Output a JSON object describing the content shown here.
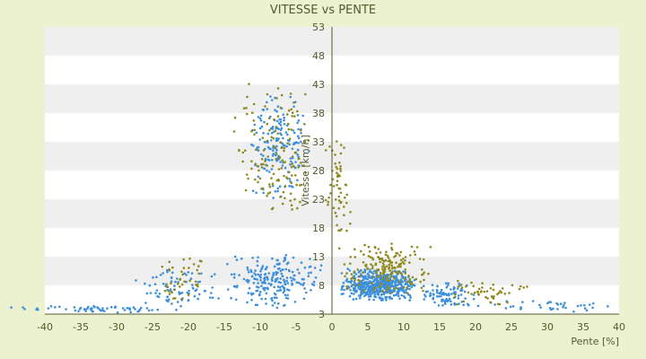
{
  "chart_data": {
    "type": "scatter",
    "title": "VITESSE vs PENTE",
    "xlabel": "Pente [%]",
    "ylabel": "Vitesse [km/h]",
    "xlim": [
      -40,
      40
    ],
    "ylim": [
      3,
      53
    ],
    "x_ticks": [
      -40,
      -35,
      -30,
      -25,
      -20,
      -15,
      -10,
      -5,
      0,
      5,
      10,
      15,
      20,
      25,
      30,
      35,
      40
    ],
    "y_ticks": [
      3,
      8,
      13,
      18,
      23,
      28,
      33,
      38,
      43,
      48,
      53
    ],
    "grid": "horizontal alternating bands",
    "legend": "none",
    "colors": {
      "background": "#ecf1cf",
      "plot_band_light": "#ffffff",
      "plot_band_dark": "#efefef",
      "text": "#555a2c",
      "series_a": "#3b8fdc",
      "series_b": "#8f8a1e"
    },
    "series": [
      {
        "color": "#3b8fdc",
        "clusters": [
          {
            "x": [
              -12,
              -3
            ],
            "y": [
              22,
              42
            ],
            "n": 170
          },
          {
            "x": [
              -15,
              -1
            ],
            "y": [
              4,
              14
            ],
            "n": 220
          },
          {
            "x": [
              -28,
              -15
            ],
            "y": [
              4,
              11
            ],
            "n": 80
          },
          {
            "x": [
              1,
              12
            ],
            "y": [
              5,
              11
            ],
            "n": 520
          },
          {
            "x": [
              12,
              20
            ],
            "y": [
              4,
              9
            ],
            "n": 90
          },
          {
            "x": [
              20,
              40
            ],
            "y": [
              3.2,
              6
            ],
            "n": 40
          },
          {
            "x": [
              -45,
              -20
            ],
            "y": [
              3.2,
              4.5
            ],
            "n": 60
          }
        ]
      },
      {
        "color": "#8f8a1e",
        "clusters": [
          {
            "x": [
              -14,
              -2
            ],
            "y": [
              18,
              44
            ],
            "n": 140
          },
          {
            "x": [
              -1,
              3
            ],
            "y": [
              14,
              36
            ],
            "n": 60
          },
          {
            "x": [
              1,
              14
            ],
            "y": [
              6,
              16
            ],
            "n": 180
          },
          {
            "x": [
              14,
              28
            ],
            "y": [
              4,
              10
            ],
            "n": 50
          },
          {
            "x": [
              -25,
              -15
            ],
            "y": [
              5,
              14
            ],
            "n": 40
          }
        ]
      }
    ]
  }
}
